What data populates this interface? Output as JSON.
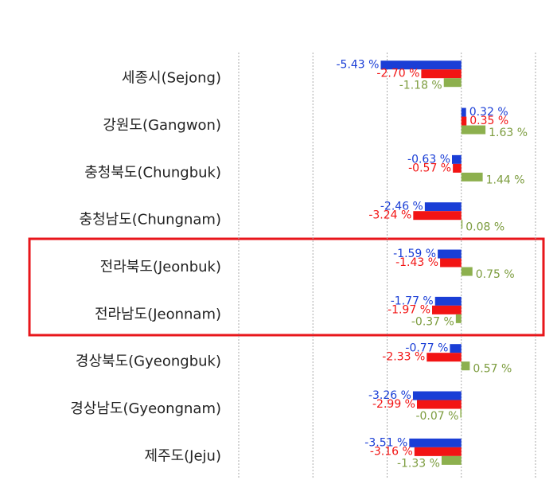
{
  "chart_data": {
    "type": "hbar",
    "categories": [
      "세종시(Sejong)",
      "강원도(Gangwon)",
      "충청북도(Chungbuk)",
      "충청남도(Chungnam)",
      "전라북도(Jeonbuk)",
      "전라남도(Jeonnam)",
      "경상북도(Gyeongbuk)",
      "경상남도(Gyeongnam)",
      "제주도(Jeju)"
    ],
    "series": [
      {
        "color": "#1a3ed6",
        "values": [
          -5.43,
          0.32,
          -0.63,
          -2.46,
          -1.59,
          -1.77,
          -0.77,
          -3.26,
          -3.51
        ],
        "value_labels": [
          "-5.43 %",
          "0.32 %",
          "-0.63 %",
          "-2.46 %",
          "-1.59 %",
          "-1.77 %",
          "-0.77 %",
          "-3.26 %",
          "-3.51 %"
        ]
      },
      {
        "color": "#f21414",
        "values": [
          -2.7,
          0.35,
          -0.57,
          -3.24,
          -1.43,
          -1.97,
          -2.33,
          -2.99,
          -3.16
        ],
        "value_labels": [
          "-2.70 %",
          "0.35 %",
          "-0.57 %",
          "-3.24 %",
          "-1.43 %",
          "-1.97 %",
          "-2.33 %",
          "-2.99 %",
          "-3.16 %"
        ]
      },
      {
        "color": "#8db04e",
        "values": [
          -1.18,
          1.63,
          1.44,
          0.08,
          0.75,
          -0.37,
          0.57,
          -0.07,
          -1.33
        ],
        "value_labels": [
          "-1.18 %",
          "1.63 %",
          "1.44 %",
          "0.08 %",
          "0.75 %",
          "-0.37 %",
          "0.57 %",
          "-0.07 %",
          "-1.33 %"
        ]
      }
    ],
    "xlim": [
      -15,
      5
    ],
    "xticks": [
      -15,
      -10,
      -5,
      0,
      5
    ],
    "grid": true
  }
}
